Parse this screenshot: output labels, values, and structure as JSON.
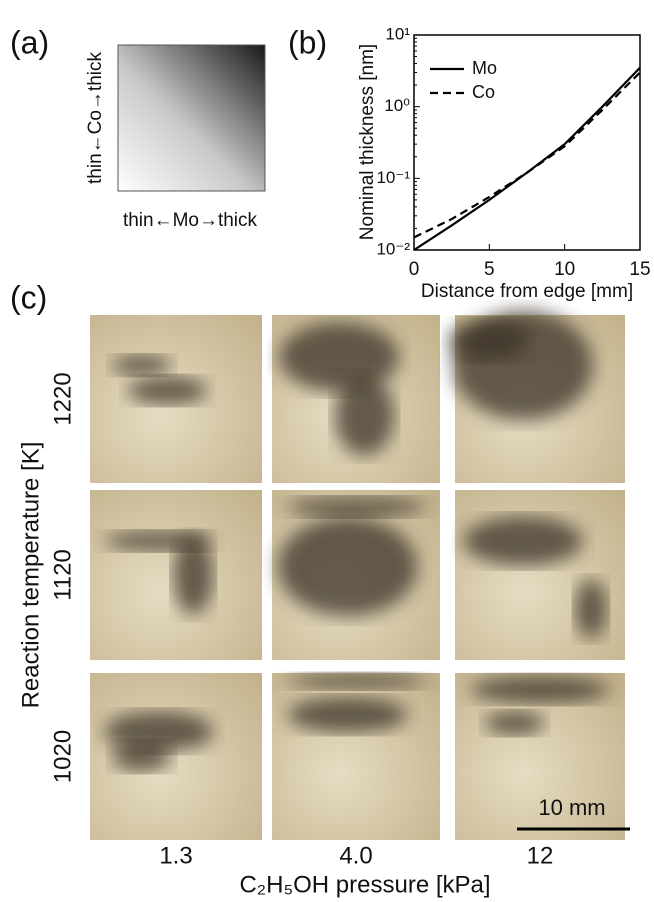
{
  "panel_a": {
    "label": "(a)",
    "y_label": "thin←Co→thick",
    "x_label": "thin←Mo→thick"
  },
  "chart_data": {
    "type": "line",
    "label": "(b)",
    "x_label": "Distance from edge [mm]",
    "y_label": "Nominal thickness [nm]",
    "x": [
      0,
      2.5,
      5,
      7.5,
      10,
      12.5,
      15
    ],
    "series": [
      {
        "name": "Mo",
        "color": "#000000",
        "dash": "solid",
        "values": [
          0.01,
          0.022,
          0.05,
          0.12,
          0.3,
          1.0,
          3.5
        ]
      },
      {
        "name": "Co",
        "color": "#000000",
        "dash": "dashed",
        "values": [
          0.015,
          0.027,
          0.055,
          0.12,
          0.28,
          0.9,
          3.0
        ]
      }
    ],
    "xlim": [
      0,
      15
    ],
    "xticks": [
      0,
      5,
      10,
      15
    ],
    "ylim": [
      0.01,
      10
    ],
    "log_y": true,
    "yticks": [
      {
        "value": 0.01,
        "label": "10⁻²"
      },
      {
        "value": 0.1,
        "label": "10⁻¹"
      },
      {
        "value": 1,
        "label": "10⁰"
      },
      {
        "value": 10,
        "label": "10¹"
      }
    ],
    "legend": "upper left"
  },
  "panel_c": {
    "label": "(c)",
    "y_label": "Reaction temperature [K]",
    "x_label": "C₂H₅OH pressure [kPa]",
    "rows": [
      "1220",
      "1120",
      "1020"
    ],
    "columns": [
      "1.3",
      "4.0",
      "12"
    ],
    "scale_bar": "10 mm"
  }
}
